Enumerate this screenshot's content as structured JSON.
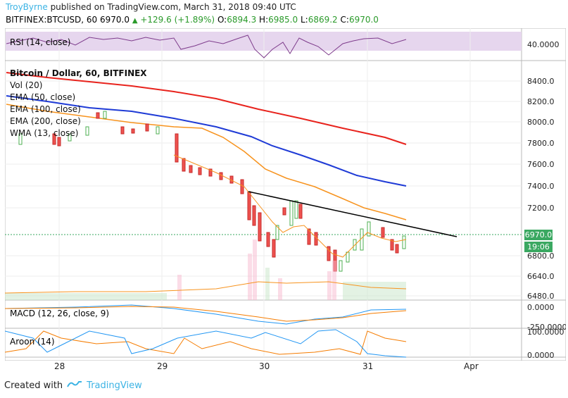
{
  "header": {
    "author": "TroyByrne",
    "published": "published on TradingView.com, March 31, 2018 09:40 UTC"
  },
  "ohlc": {
    "symbol": "BITFINEX:BTCUSD, 60",
    "last": "6970.0",
    "change": "+129.6 (+1.89%)",
    "o_label": "O:",
    "o": "6894.3",
    "h_label": "H:",
    "h": "6985.0",
    "l_label": "L:",
    "l": "6869.2",
    "c_label": "C:",
    "c": "6970.0"
  },
  "legend": {
    "title": "Bitcoin / Dollar, 60, BITFINEX",
    "vol": "Vol (20)",
    "ema50": "EMA (50, close)",
    "ema100": "EMA (100, close)",
    "ema200": "EMA (200, close)",
    "wma": "WMA (13, close)"
  },
  "rsi": {
    "label": "RSI (14, close)",
    "tick": "40.0000"
  },
  "macd": {
    "label": "MACD (12, 26, close, 9)",
    "tick0": "0.0000",
    "tick1": "-250.0000"
  },
  "aroon": {
    "label": "Aroon (14)",
    "tick0": "100.0000",
    "tick1": "0.0000"
  },
  "price_axis": [
    "8400.0",
    "8200.0",
    "8000.0",
    "7800.0",
    "7600.0",
    "7400.0",
    "7200.0",
    "6800.0",
    "6640.0",
    "6480.0"
  ],
  "price_tag": {
    "price": "6970.0",
    "time": "19:06"
  },
  "time_axis": [
    "28",
    "29",
    "30",
    "31",
    "Apr"
  ],
  "footer": {
    "created_with": "Created with",
    "brand": "TradingView"
  },
  "colors": {
    "ema50": "#f7931e",
    "ema100": "#1f3bd6",
    "ema200": "#e8231d",
    "wma": "#f7931e",
    "up": "#4caf50",
    "down": "#ef5350",
    "rsi": "#7e3c8c",
    "macd": "#2196f3",
    "signal": "#f57c00"
  },
  "chart_data": {
    "type": "candlestick",
    "title": "Bitcoin / Dollar, 60, BITFINEX",
    "ylim": [
      6420,
      8560
    ],
    "x_ticks": [
      "28",
      "29",
      "30",
      "31",
      "Apr"
    ],
    "last_close": 6970.0,
    "ema200": [
      8450,
      8330,
      8180,
      8010,
      7860,
      7780
    ],
    "ema100": [
      8340,
      8230,
      8090,
      7860,
      7560,
      7400
    ],
    "ema50": [
      8200,
      8100,
      7960,
      7620,
      7200,
      7100
    ],
    "trendline": {
      "from": 7340,
      "to": 6995
    }
  }
}
